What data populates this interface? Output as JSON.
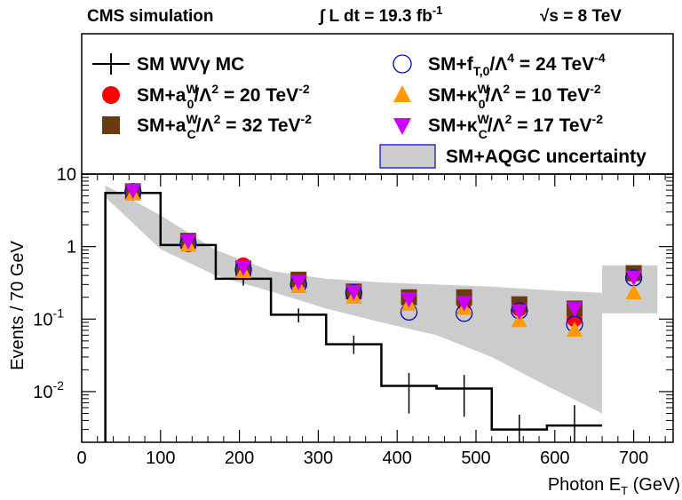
{
  "header": {
    "experiment": "CMS simulation",
    "luminosity": "∫ L dt = 19.3 fb",
    "luminosity_exp": "-1",
    "energy": "√s = 8 TeV"
  },
  "legend": [
    {
      "key": "sm",
      "label": "SM WVγ MC",
      "marker": "cross",
      "color": "#000000"
    },
    {
      "key": "a0",
      "label": "SM+a0W/Λ2 = 20 TeV-2",
      "label_main": "SM+a",
      "sub": "0",
      "sup": "W",
      "rest": "/Λ",
      "rest_sup": "2",
      "tail": " = 20 TeV",
      "tail_sup": "-2",
      "marker": "circle",
      "color": "#ff0000"
    },
    {
      "key": "aC",
      "label": "SM+aCW/Λ2 = 32 TeV-2",
      "label_main": "SM+a",
      "sub": "C",
      "sup": "W",
      "rest": "/Λ",
      "rest_sup": "2",
      "tail": " = 32 TeV",
      "tail_sup": "-2",
      "marker": "square",
      "color": "#6b3a0f"
    },
    {
      "key": "fT0",
      "label": "SM+fT,0/Λ4 = 24 TeV-4",
      "label_main": "SM+f",
      "sub": "T,0",
      "sup": "",
      "rest": "/Λ",
      "rest_sup": "4",
      "tail": " = 24 TeV",
      "tail_sup": "-4",
      "marker": "open-circle",
      "color": "#0000cc"
    },
    {
      "key": "k0",
      "label": "SM+κ0W/Λ2 = 10 TeV-2",
      "label_main": "SM+κ",
      "sub": "0",
      "sup": "W",
      "rest": "/Λ",
      "rest_sup": "2",
      "tail": " = 10 TeV",
      "tail_sup": "-2",
      "marker": "triangle-up",
      "color": "#ff9900"
    },
    {
      "key": "kC",
      "label": "SM+κCW/Λ2 = 17 TeV-2",
      "label_main": "SM+κ",
      "sub": "C",
      "sup": "W",
      "rest": "/Λ",
      "rest_sup": "2",
      "tail": " = 17 TeV",
      "tail_sup": "-2",
      "marker": "triangle-down",
      "color": "#cc00ff"
    },
    {
      "key": "band",
      "label": "SM+AQGC uncertainty",
      "marker": "box",
      "color": "#cccccc",
      "edge": "#0000cc"
    }
  ],
  "chart_data": {
    "type": "line",
    "xlabel": "Photon E",
    "xlabel_sub": "T",
    "xlabel_unit": " (GeV)",
    "ylabel": "Events / 70 GeV",
    "xlim": [
      0,
      750
    ],
    "ylim": [
      0.002,
      10
    ],
    "yscale": "log",
    "grid": false,
    "legend_position": "top",
    "x_ticks": [
      0,
      100,
      200,
      300,
      400,
      500,
      600,
      700
    ],
    "y_ticks": [
      {
        "value": 0.01,
        "base": "10",
        "exp": "-2"
      },
      {
        "value": 0.1,
        "base": "10",
        "exp": "-1"
      },
      {
        "value": 1,
        "base": "1",
        "exp": ""
      },
      {
        "value": 10,
        "base": "10",
        "exp": ""
      }
    ],
    "sm_histogram": {
      "bin_edges": [
        30,
        100,
        170,
        240,
        310,
        380,
        450,
        520,
        590,
        660
      ],
      "values": [
        5.5,
        1.05,
        0.36,
        0.115,
        0.045,
        0.012,
        0.011,
        0.003,
        0.0034
      ],
      "errors_lo": [
        4.3,
        0.85,
        0.29,
        0.09,
        0.033,
        0.005,
        0.0045,
        0.0012,
        0.0015
      ],
      "errors_hi": [
        6.7,
        1.25,
        0.44,
        0.14,
        0.059,
        0.018,
        0.017,
        0.0048,
        0.0065
      ]
    },
    "uncertainty_band": {
      "x": [
        30,
        100,
        170,
        240,
        310,
        380,
        450,
        520,
        590,
        660
      ],
      "lower": [
        4.8,
        0.92,
        0.4,
        0.24,
        0.14,
        0.09,
        0.06,
        0.03,
        0.012,
        0.005
      ],
      "upper": [
        7.0,
        2.7,
        0.9,
        0.46,
        0.36,
        0.32,
        0.3,
        0.28,
        0.25,
        0.23
      ],
      "overflow": {
        "x": [
          660,
          730
        ],
        "lower": 0.12,
        "upper": 0.55
      }
    },
    "x": [
      65,
      135,
      205,
      275,
      345,
      415,
      485,
      555,
      625,
      700
    ],
    "series": [
      {
        "key": "a0",
        "name": "SM+a0W/Λ2 = 20 TeV-2",
        "values": [
          5.6,
          1.15,
          0.55,
          0.33,
          0.22,
          0.19,
          0.17,
          0.14,
          0.1,
          0.42
        ]
      },
      {
        "key": "aC",
        "name": "SM+aCW/Λ2 = 32 TeV-2",
        "values": [
          5.8,
          1.2,
          0.5,
          0.35,
          0.24,
          0.2,
          0.2,
          0.16,
          0.14,
          0.43
        ]
      },
      {
        "key": "fT0",
        "name": "SM+fT,0/Λ4 = 24 TeV-4",
        "values": [
          5.7,
          1.1,
          0.48,
          0.3,
          0.23,
          0.125,
          0.12,
          0.13,
          0.085,
          0.37
        ]
      },
      {
        "key": "k0",
        "name": "SM+κ0W/Λ2 = 10 TeV-2",
        "values": [
          5.3,
          1.05,
          0.45,
          0.28,
          0.2,
          0.16,
          0.14,
          0.095,
          0.07,
          0.23
        ]
      },
      {
        "key": "kC",
        "name": "SM+κCW/Λ2 = 17 TeV-2",
        "values": [
          6.0,
          1.2,
          0.52,
          0.33,
          0.24,
          0.19,
          0.17,
          0.13,
          0.14,
          0.38
        ]
      }
    ]
  }
}
